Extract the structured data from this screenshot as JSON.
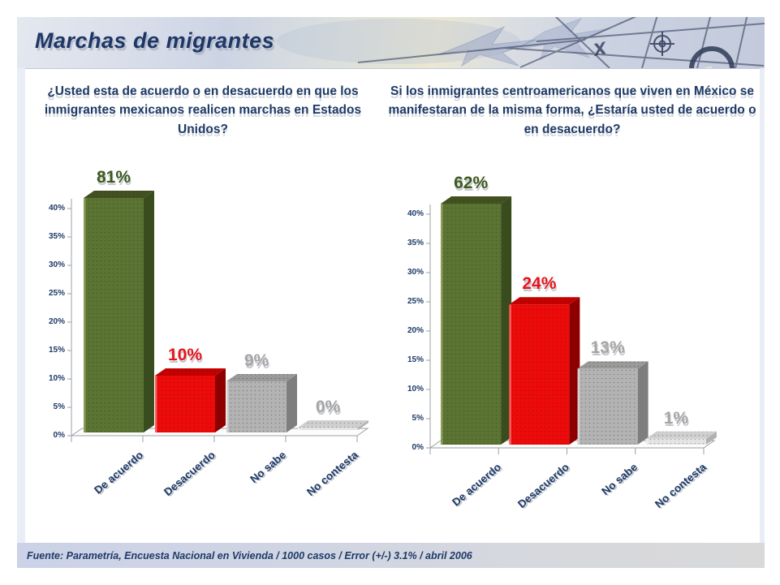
{
  "header": {
    "title": "Marchas de migrantes"
  },
  "chart_data": [
    {
      "type": "bar",
      "title": "¿Usted esta de acuerdo o en desacuerdo en que los inmigrantes mexicanos realicen marchas en Estados Unidos?",
      "categories": [
        "De acuerdo",
        "Desacuerdo",
        "No sabe",
        "No contesta"
      ],
      "values": [
        81,
        10,
        9,
        0
      ],
      "value_labels": [
        "81%",
        "10%",
        "9%",
        "0%"
      ],
      "label_colors": [
        "#3c5a1d",
        "#e8141c",
        "#a6a6a6",
        "#a6a6a6"
      ],
      "xlabel": "",
      "ylabel": "",
      "ylim": [
        0,
        40
      ],
      "y_ticks": [
        "0%",
        "5%",
        "10%",
        "15%",
        "20%",
        "25%",
        "30%",
        "35%",
        "40%"
      ],
      "grid": false,
      "legend": "none",
      "note": "3D bars; bars above 40% are clipped at the axis top"
    },
    {
      "type": "bar",
      "title": "Si los inmigrantes centroamericanos que viven en México se manifestaran de la misma forma, ¿Estaría usted de acuerdo o en desacuerdo?",
      "categories": [
        "De acuerdo",
        "Desacuerdo",
        "No sabe",
        "No contesta"
      ],
      "values": [
        62,
        24,
        13,
        1
      ],
      "value_labels": [
        "62%",
        "24%",
        "13%",
        "1%"
      ],
      "label_colors": [
        "#3c5a1d",
        "#e8141c",
        "#a6a6a6",
        "#a6a6a6"
      ],
      "xlabel": "",
      "ylabel": "",
      "ylim": [
        0,
        40
      ],
      "y_ticks": [
        "0%",
        "5%",
        "10%",
        "15%",
        "20%",
        "25%",
        "30%",
        "35%",
        "40%"
      ],
      "grid": false,
      "legend": "none",
      "note": "3D bars; bars above 40% are clipped at the axis top"
    }
  ],
  "bar_styles": [
    {
      "front": "#5c7433",
      "top": "#42511f",
      "side": "#394c1d",
      "edge": "#8fa55c"
    },
    {
      "front": "#ee0a0a",
      "top": "#c50000",
      "side": "#8e0000",
      "edge": "#ff6a6a"
    },
    {
      "front": "#b3b3b3",
      "top": "#9a9a9a",
      "side": "#7e7e7e",
      "edge": "#d8d8d8"
    },
    {
      "front": "#e4e4e4",
      "top": "#cfcfcf",
      "side": "#b0b0b0",
      "edge": "#f2f2f2"
    }
  ],
  "colors": {
    "accent_text": "#1e3a66",
    "axis": "#9aa0a6",
    "footer_bg": "#ccd2e7"
  },
  "footer": {
    "source": "Fuente: Parametría, Encuesta Nacional en Vivienda / 1000 casos / Error (+/-) 3.1% / abril 2006"
  }
}
